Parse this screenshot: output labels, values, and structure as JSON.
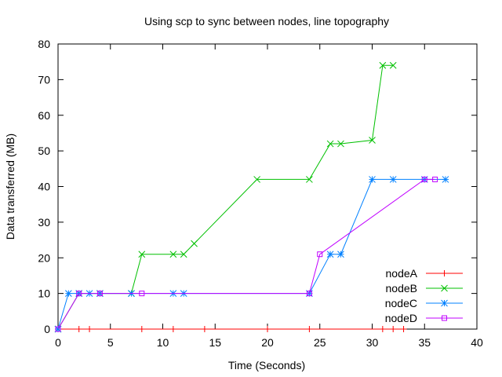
{
  "chart_data": {
    "type": "line",
    "title": "Using scp to sync between nodes, line topography",
    "xlabel": "Time (Seconds)",
    "ylabel": "Data transferred (MB)",
    "xlim": [
      0,
      40
    ],
    "ylim": [
      0,
      80
    ],
    "x_ticks": [
      0,
      5,
      10,
      15,
      20,
      25,
      30,
      35,
      40
    ],
    "y_ticks": [
      0,
      10,
      20,
      30,
      40,
      50,
      60,
      70,
      80
    ],
    "grid": false,
    "legend_position": "bottom-right",
    "series": [
      {
        "name": "nodeA",
        "color": "#ff0000",
        "marker": "plus",
        "x": [
          0,
          2,
          3,
          8,
          11,
          14,
          20,
          24,
          31,
          32,
          33
        ],
        "y": [
          0,
          0,
          0,
          0,
          0,
          0,
          0,
          0,
          0,
          0,
          0
        ]
      },
      {
        "name": "nodeB",
        "color": "#00c000",
        "marker": "cross",
        "x": [
          0,
          2,
          4,
          7,
          8,
          11,
          12,
          13,
          19,
          24,
          26,
          27,
          30,
          31,
          32
        ],
        "y": [
          0,
          10,
          10,
          10,
          21,
          21,
          21,
          24,
          42,
          42,
          52,
          52,
          53,
          74,
          74
        ]
      },
      {
        "name": "nodeC",
        "color": "#0080ff",
        "marker": "star",
        "x": [
          0,
          1,
          2,
          3,
          4,
          7,
          11,
          12,
          24,
          26,
          27,
          30,
          32,
          35,
          37
        ],
        "y": [
          0,
          10,
          10,
          10,
          10,
          10,
          10,
          10,
          10,
          21,
          21,
          42,
          42,
          42,
          42
        ]
      },
      {
        "name": "nodeD",
        "color": "#c000ff",
        "marker": "square",
        "x": [
          0,
          2,
          4,
          8,
          24,
          25,
          35,
          36
        ],
        "y": [
          0,
          10,
          10,
          10,
          10,
          21,
          42,
          42
        ]
      }
    ]
  }
}
